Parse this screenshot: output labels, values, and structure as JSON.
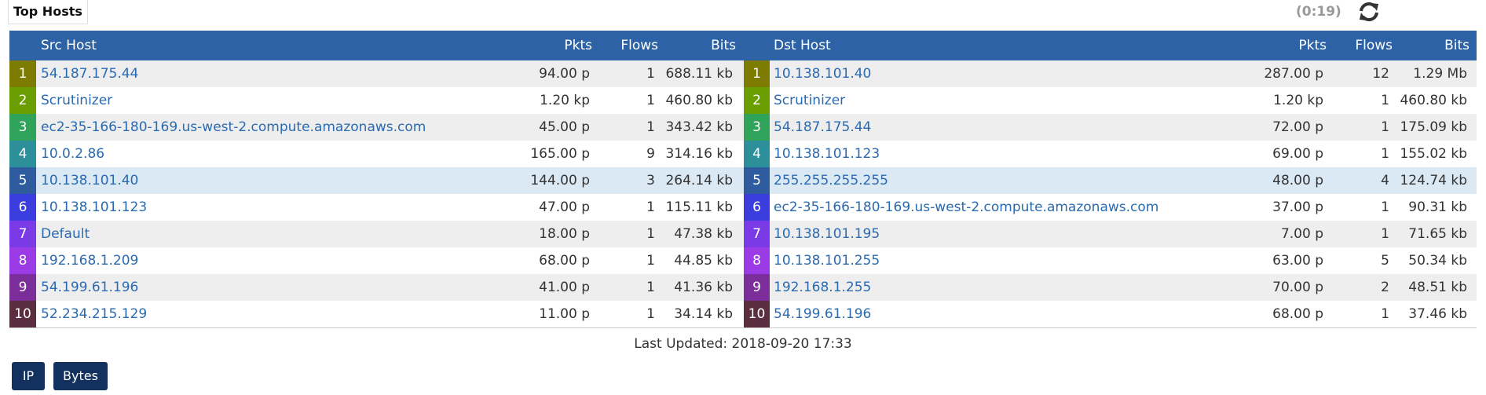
{
  "header": {
    "title": "Top Hosts",
    "timer": "(0:19)"
  },
  "table": {
    "columns": [
      "Src Host",
      "Pkts",
      "Flows",
      "Bits",
      "Dst Host",
      "Pkts",
      "Flows",
      "Bits"
    ],
    "rows": [
      [
        "1",
        "54.187.175.44",
        "94.00 p",
        "1",
        "688.11 kb",
        "1",
        "10.138.101.40",
        "287.00 p",
        "12",
        "1.29 Mb"
      ],
      [
        "2",
        "Scrutinizer",
        "1.20 kp",
        "1",
        "460.80 kb",
        "2",
        "Scrutinizer",
        "1.20 kp",
        "1",
        "460.80 kb"
      ],
      [
        "3",
        "ec2-35-166-180-169.us-west-2.compute.amazonaws.com",
        "45.00 p",
        "1",
        "343.42 kb",
        "3",
        "54.187.175.44",
        "72.00 p",
        "1",
        "175.09 kb"
      ],
      [
        "4",
        "10.0.2.86",
        "165.00 p",
        "9",
        "314.16 kb",
        "4",
        "10.138.101.123",
        "69.00 p",
        "1",
        "155.02 kb"
      ],
      [
        "5",
        "10.138.101.40",
        "144.00 p",
        "3",
        "264.14 kb",
        "5",
        "255.255.255.255",
        "48.00 p",
        "4",
        "124.74 kb"
      ],
      [
        "6",
        "10.138.101.123",
        "47.00 p",
        "1",
        "115.11 kb",
        "6",
        "ec2-35-166-180-169.us-west-2.compute.amazonaws.com",
        "37.00 p",
        "1",
        "90.31 kb"
      ],
      [
        "7",
        "Default",
        "18.00 p",
        "1",
        "47.38 kb",
        "7",
        "10.138.101.195",
        "7.00 p",
        "1",
        "71.65 kb"
      ],
      [
        "8",
        "192.168.1.209",
        "68.00 p",
        "1",
        "44.85 kb",
        "8",
        "10.138.101.255",
        "63.00 p",
        "5",
        "50.34 kb"
      ],
      [
        "9",
        "54.199.61.196",
        "41.00 p",
        "1",
        "41.36 kb",
        "9",
        "192.168.1.255",
        "70.00 p",
        "2",
        "48.51 kb"
      ],
      [
        "10",
        "52.234.215.129",
        "11.00 p",
        "1",
        "34.14 kb",
        "10",
        "54.199.61.196",
        "68.00 p",
        "1",
        "37.46 kb"
      ]
    ]
  },
  "footer": "Last Updated: 2018-09-20 17:33",
  "buttons": [
    "IP",
    "Bytes"
  ]
}
